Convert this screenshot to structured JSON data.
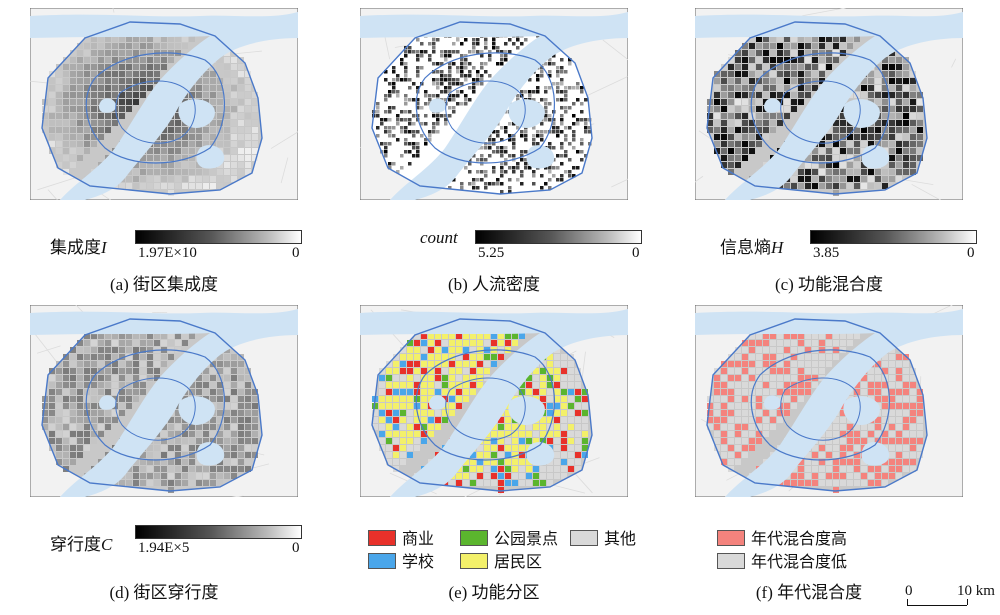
{
  "panels": [
    {
      "caption": "(a) 街区集成度",
      "legend_title": "集成度",
      "legend_var": "I",
      "ramp_min": "1.97E×10",
      "ramp_max": "0",
      "style": "integration"
    },
    {
      "caption": "(b) 人流密度",
      "legend_title": "",
      "legend_var": "count",
      "ramp_min": "5.25",
      "ramp_max": "0",
      "style": "density"
    },
    {
      "caption": "(c) 功能混合度",
      "legend_title": "信息熵",
      "legend_var": "H",
      "ramp_min": "3.85",
      "ramp_max": "0",
      "style": "entropy"
    },
    {
      "caption": "(d) 街区穿行度",
      "legend_title": "穿行度",
      "legend_var": "C",
      "ramp_min": "1.94E×5",
      "ramp_max": "0",
      "style": "choice"
    },
    {
      "caption": "(e) 功能分区",
      "style": "function"
    },
    {
      "caption": "(f) 年代混合度",
      "style": "age"
    }
  ],
  "function_legend": [
    {
      "label": "商业",
      "color": "#e8312a"
    },
    {
      "label": "公园景点",
      "color": "#5bb52e"
    },
    {
      "label": "其他",
      "color": "#d9d9d9"
    },
    {
      "label": "学校",
      "color": "#4aa6ea"
    },
    {
      "label": "居民区",
      "color": "#f3f06a"
    }
  ],
  "age_legend": [
    {
      "label": "年代混合度高",
      "color": "#f4837d"
    },
    {
      "label": "年代混合度低",
      "color": "#d9d9d9"
    }
  ],
  "scale_bar": {
    "zero": "0",
    "label": "10 km"
  },
  "colors": {
    "water": "#cfe3f4",
    "boundary": "#4a79c9",
    "land": "#f2f2f2"
  }
}
